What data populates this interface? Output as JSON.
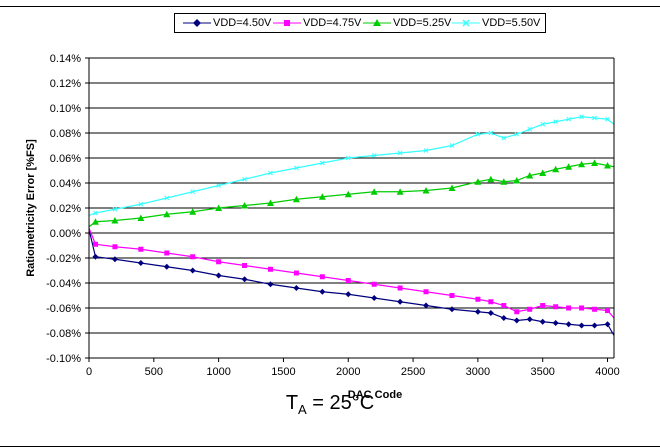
{
  "chart_data": {
    "type": "line",
    "xlabel": "DAC Code",
    "ylabel": "Ratiometricity Error [%FS]",
    "xlim": [
      0,
      4000
    ],
    "ylim": [
      -0.1,
      0.14
    ],
    "xticks": [
      "0",
      "500",
      "1000",
      "1500",
      "2000",
      "2500",
      "3000",
      "3500",
      "4000"
    ],
    "yticks": [
      "0.14%",
      "0.12%",
      "0.10%",
      "0.08%",
      "0.06%",
      "0.04%",
      "0.02%",
      "0.00%",
      "-0.02%",
      "-0.04%",
      "-0.06%",
      "-0.08%",
      "-0.10%"
    ],
    "ytick_values": [
      0.14,
      0.12,
      0.1,
      0.08,
      0.06,
      0.04,
      0.02,
      0.0,
      -0.02,
      -0.04,
      -0.06,
      -0.08,
      -0.1
    ],
    "grid": "horizontal",
    "legend_position": "top",
    "x": [
      0,
      50,
      200,
      400,
      600,
      800,
      1000,
      1200,
      1400,
      1600,
      1800,
      2000,
      2200,
      2400,
      2600,
      2800,
      3000,
      3100,
      3200,
      3300,
      3400,
      3500,
      3600,
      3700,
      3800,
      3900,
      4000,
      4050
    ],
    "series": [
      {
        "name": "VDD=4.50V",
        "color": "#00007f",
        "marker": "diamond",
        "values": [
          0.003,
          -0.019,
          -0.021,
          -0.024,
          -0.027,
          -0.03,
          -0.034,
          -0.037,
          -0.041,
          -0.044,
          -0.047,
          -0.049,
          -0.052,
          -0.055,
          -0.058,
          -0.061,
          -0.063,
          -0.064,
          -0.068,
          -0.07,
          -0.069,
          -0.071,
          -0.072,
          -0.073,
          -0.074,
          -0.074,
          -0.073,
          -0.082
        ]
      },
      {
        "name": "VDD=4.75V",
        "color": "#ff00ff",
        "marker": "square",
        "values": [
          0.004,
          -0.009,
          -0.011,
          -0.013,
          -0.016,
          -0.019,
          -0.023,
          -0.026,
          -0.029,
          -0.032,
          -0.035,
          -0.038,
          -0.041,
          -0.044,
          -0.047,
          -0.05,
          -0.053,
          -0.055,
          -0.058,
          -0.063,
          -0.061,
          -0.058,
          -0.059,
          -0.06,
          -0.06,
          -0.061,
          -0.062,
          -0.068
        ]
      },
      {
        "name": "VDD=5.25V",
        "color": "#00cc00",
        "marker": "triangle",
        "values": [
          0.005,
          0.009,
          0.01,
          0.012,
          0.015,
          0.017,
          0.02,
          0.022,
          0.024,
          0.027,
          0.029,
          0.031,
          0.033,
          0.033,
          0.034,
          0.036,
          0.041,
          0.043,
          0.041,
          0.042,
          0.046,
          0.048,
          0.051,
          0.053,
          0.055,
          0.056,
          0.054,
          0.053
        ]
      },
      {
        "name": "VDD=5.50V",
        "color": "#33ffff",
        "marker": "cross",
        "values": [
          0.014,
          0.016,
          0.019,
          0.023,
          0.028,
          0.033,
          0.038,
          0.043,
          0.048,
          0.052,
          0.056,
          0.06,
          0.062,
          0.064,
          0.066,
          0.07,
          0.079,
          0.08,
          0.076,
          0.079,
          0.083,
          0.087,
          0.089,
          0.091,
          0.093,
          0.092,
          0.091,
          0.087
        ]
      }
    ]
  },
  "footer": {
    "ta_main": "T",
    "ta_sub": "A",
    "ta_rest": " = 25°C"
  }
}
